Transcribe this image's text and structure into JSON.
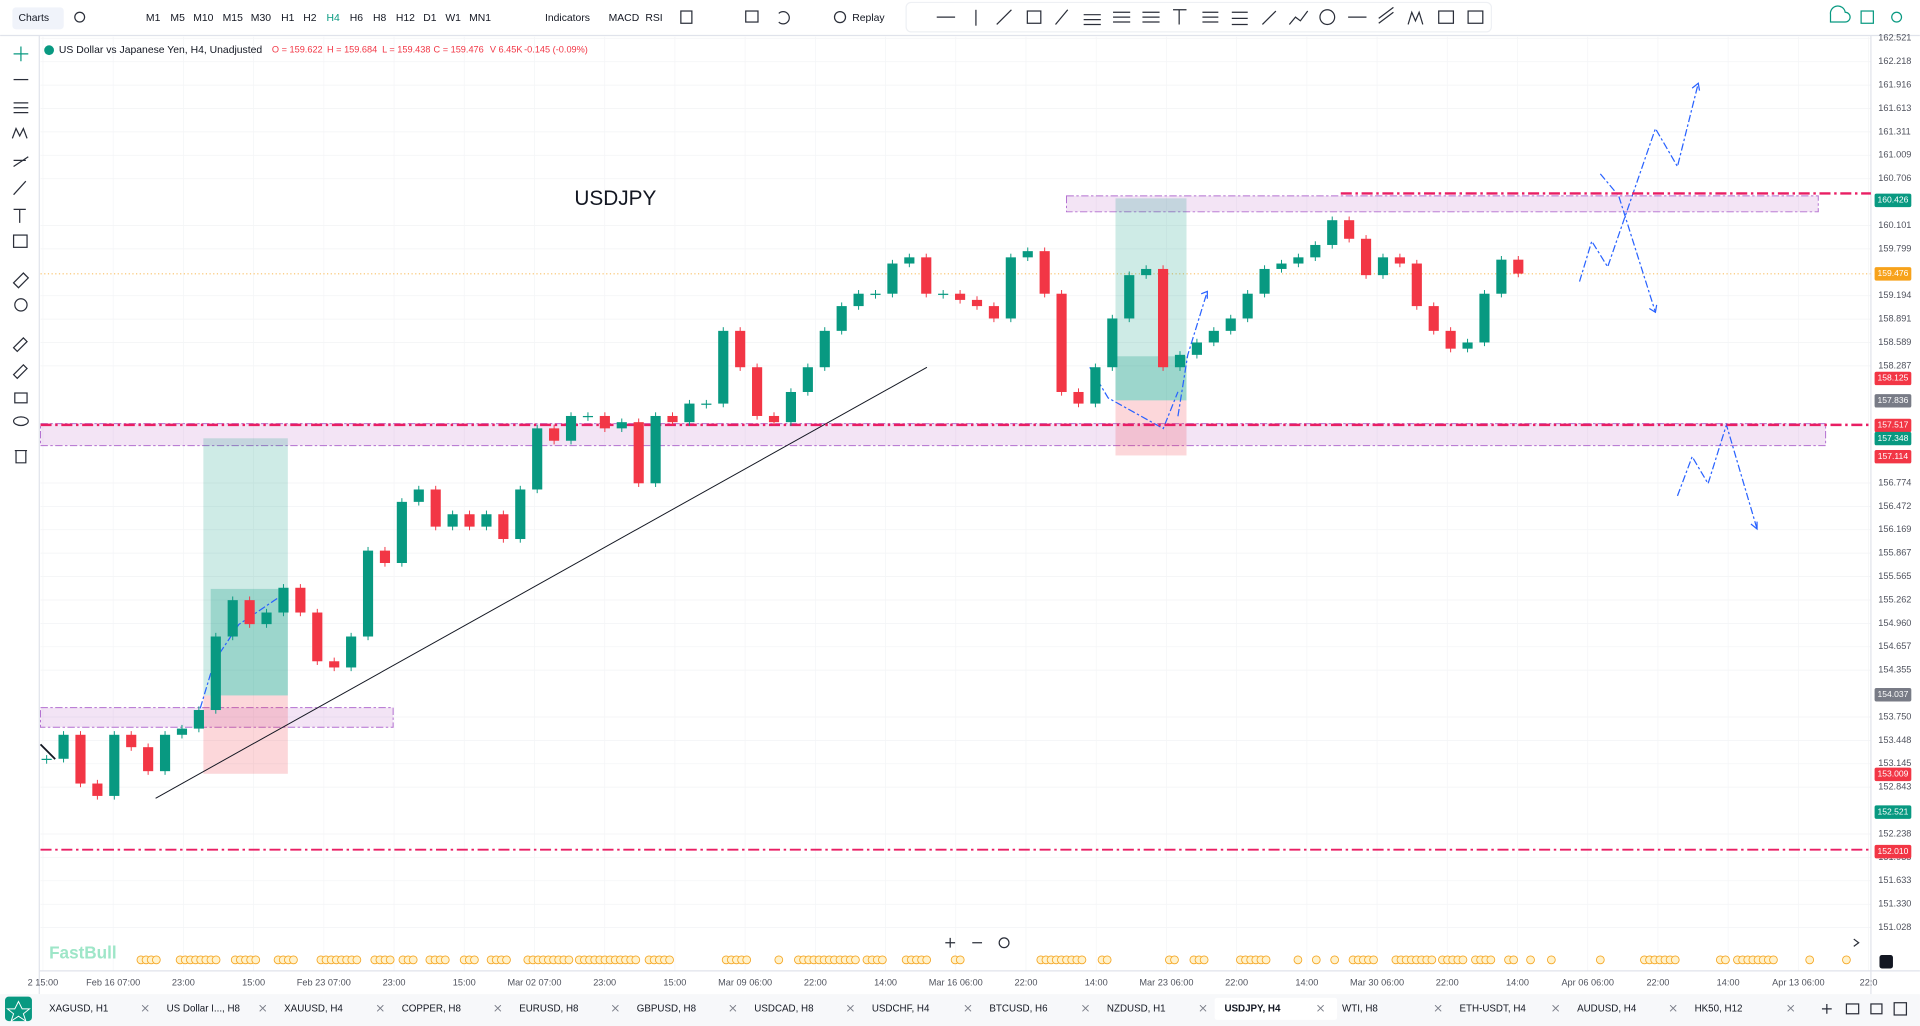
{
  "toolbar": {
    "menu": "Charts",
    "timeframes": [
      "M1",
      "M5",
      "M10",
      "M15",
      "M30",
      "H1",
      "H2",
      "H4",
      "H6",
      "H8",
      "H12",
      "D1",
      "W1",
      "MN1"
    ],
    "indicators": "Indicators",
    "studies": [
      "MACD",
      "RSI"
    ],
    "replay": "Replay"
  },
  "legend": {
    "symbol": "US Dollar vs Japanese Yen, H4, Unadjusted",
    "open": "O = 159.622",
    "high": "H = 159.684",
    "low": "L = 159.438",
    "close": "C = 159.476",
    "volume": "V 6.45K",
    "change": "-0.145 (-0.09%)"
  },
  "chart_data": {
    "type": "candlestick",
    "title": "USDJPY",
    "up_color": "#089981",
    "down_color": "#f23645",
    "closes": [
      153.21,
      153.52,
      152.89,
      152.73,
      153.52,
      153.36,
      153.05,
      153.52,
      153.6,
      153.84,
      154.79,
      155.26,
      154.95,
      155.1,
      155.42,
      155.1,
      154.47,
      154.39,
      154.79,
      155.9,
      155.74,
      156.53,
      156.69,
      156.21,
      156.37,
      156.21,
      156.37,
      156.05,
      156.69,
      157.48,
      157.32,
      157.64,
      157.64,
      157.48,
      157.56,
      156.77,
      157.64,
      157.56,
      157.8,
      157.8,
      158.74,
      158.27,
      157.64,
      157.56,
      157.95,
      158.27,
      158.74,
      159.06,
      159.22,
      159.22,
      159.61,
      159.69,
      159.22,
      159.22,
      159.14,
      159.06,
      158.9,
      159.69,
      159.77,
      159.22,
      157.95,
      157.8,
      158.27,
      158.9,
      159.46,
      159.54,
      158.27,
      158.43,
      158.59,
      158.74,
      158.9,
      159.22,
      159.54,
      159.61,
      159.69,
      159.85,
      160.17,
      159.93,
      159.46,
      159.69,
      159.61,
      159.06,
      158.74,
      158.51,
      158.59,
      159.22,
      159.66,
      159.48
    ],
    "x_labels": [
      "2 15:00",
      "Feb 16 07:00",
      "23:00",
      "15:00",
      "Feb 23 07:00",
      "23:00",
      "15:00",
      "Mar 02 07:00",
      "23:00",
      "15:00",
      "Mar 09 06:00",
      "22:00",
      "14:00",
      "Mar 16 06:00",
      "22:00",
      "14:00",
      "Mar 23 06:00",
      "22:00",
      "14:00",
      "Mar 30 06:00",
      "22:00",
      "14:00",
      "Apr 06 06:00",
      "22:00",
      "14:00",
      "Apr 13 06:00",
      "22:0"
    ],
    "ylim": [
      150.706,
      162.541
    ],
    "yticks": [
      162.521,
      162.218,
      161.916,
      161.613,
      161.311,
      161.009,
      160.706,
      160.101,
      159.799,
      159.194,
      158.891,
      158.589,
      158.287,
      156.774,
      156.472,
      156.169,
      155.867,
      155.565,
      155.262,
      {
        "value": 154.96,
        "label": "154.960"
      },
      154.657,
      154.355,
      {
        "value": 153.75,
        "label": "153.750"
      },
      153.448,
      153.145,
      152.843,
      152.238,
      151.935,
      151.633,
      {
        "value": 151.33,
        "label": "151.330"
      },
      151.028
    ],
    "price_tags": [
      {
        "value": 160.426,
        "color": "#089981"
      },
      {
        "value": 159.476,
        "color": "#f7a21b"
      },
      {
        "value": 158.125,
        "color": "#f23645"
      },
      {
        "value": 157.836,
        "color": "#787b86"
      },
      {
        "value": 157.517,
        "color": "#f23645"
      },
      {
        "value": 157.348,
        "color": "#089981"
      },
      {
        "value": 157.114,
        "color": "#f23645"
      },
      {
        "value": 154.037,
        "color": "#787b86"
      },
      {
        "value": 153.009,
        "color": "#f23645"
      },
      {
        "value": 152.521,
        "color": "#089981"
      },
      {
        "value": 152.01,
        "label": "152.010",
        "color": "#f23645"
      }
    ],
    "grid": true
  },
  "watermark": "FastBull",
  "tabs": [
    "XAGUSD, H1",
    "US Dollar I..., H8",
    "XAUUSD, H4",
    "COPPER, H8",
    "EURUSD, H8",
    "GBPUSD, H8",
    "USDCAD, H8",
    "USDCHF, H4",
    "BTCUSD, H6",
    "NZDUSD, H1",
    "USDJPY, H4",
    "WTI, H8",
    "ETH-USDT, H4",
    "AUDUSD, H4",
    "HK50, H12"
  ]
}
